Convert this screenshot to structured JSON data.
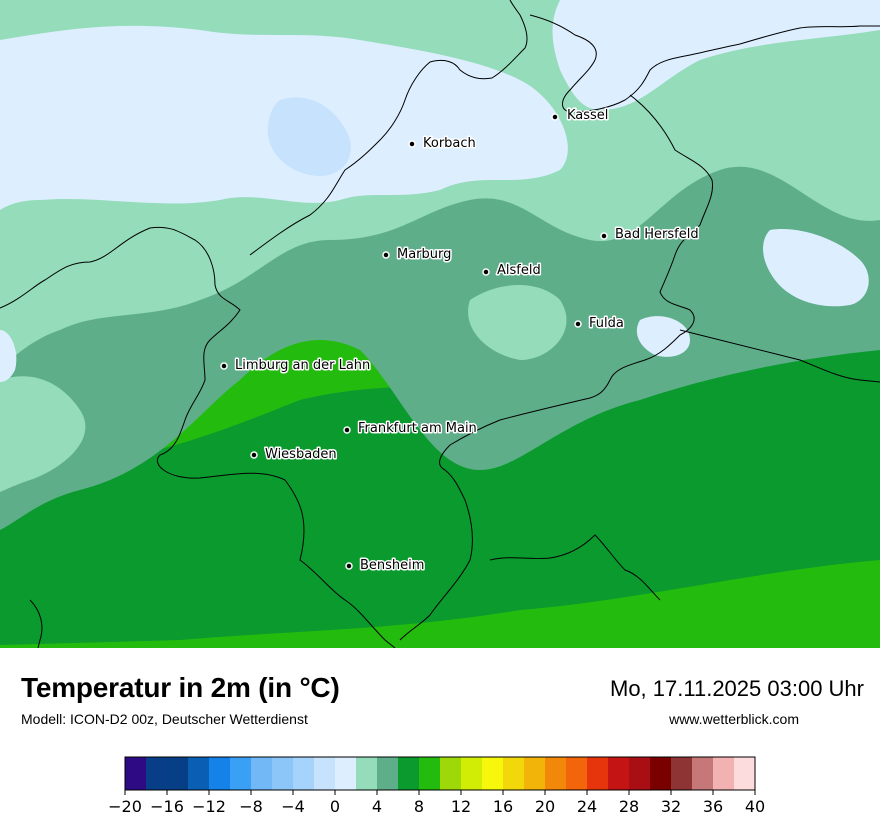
{
  "map": {
    "cities": [
      {
        "name": "Kassel"
      },
      {
        "name": "Korbach"
      },
      {
        "name": "Bad Hersfeld"
      },
      {
        "name": "Marburg"
      },
      {
        "name": "Alsfeld"
      },
      {
        "name": "Fulda"
      },
      {
        "name": "Limburg an der Lahn"
      },
      {
        "name": "Frankfurt am Main"
      },
      {
        "name": "Wiesbaden"
      },
      {
        "name": "Bensheim"
      }
    ]
  },
  "footer": {
    "title": "Temperatur in 2m (in °C)",
    "subtitle": "Modell: ICON-D2 00z, Deutscher Wetterdienst",
    "datetime": "Mo, 17.11.2025 03:00 Uhr",
    "website": "www.wetterblick.com"
  },
  "legend": {
    "ticks": [
      "−20",
      "−16",
      "−12",
      "−8",
      "−4",
      "0",
      "4",
      "8",
      "12",
      "16",
      "20",
      "24",
      "28",
      "32",
      "36",
      "40"
    ],
    "colors": [
      "#2e0a85",
      "#083e88",
      "#063f86",
      "#0a5fb5",
      "#1482e8",
      "#3aa0f5",
      "#72b8f7",
      "#8cc6f9",
      "#a6d3fb",
      "#c6e2fd",
      "#ddeeff",
      "#94dcba",
      "#5fae8a",
      "#0a9a2e",
      "#23bb0e",
      "#9fd808",
      "#d1ec05",
      "#f6f70a",
      "#f2d80a",
      "#f2b408",
      "#f2880a",
      "#f2650a",
      "#e6340c",
      "#c41414",
      "#a80e14",
      "#7a0000",
      "#8e3434",
      "#c67878",
      "#f2b2b2",
      "#fcdcdc"
    ]
  }
}
